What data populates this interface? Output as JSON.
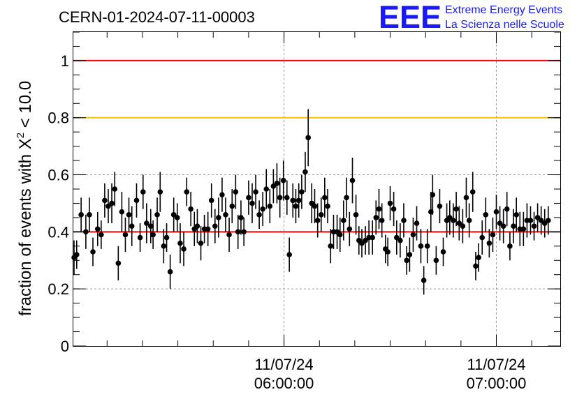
{
  "header": {
    "run_id": "CERN-01-2024-07-11-00003",
    "logo": {
      "mark": "EEE",
      "line1": "Extreme Energy Events",
      "line2": "La Scienza nelle Scuole",
      "color": "#1a1aff"
    }
  },
  "chart_data": {
    "type": "scatter",
    "title": "CERN-01-2024-07-11-00003",
    "ylabel_prefix": "fraction of events with ",
    "ylabel_symbol": "X",
    "ylabel_exponent": "2",
    "ylabel_suffix": " < 10.0",
    "ylim": [
      0,
      1.1
    ],
    "y_ticks": [
      "0",
      "0.2",
      "0.4",
      "0.6",
      "0.8",
      "1"
    ],
    "x_range": [
      "2024-07-11T05:00:40",
      "2024-07-11T07:17:40"
    ],
    "x_ticks": [
      {
        "t": "2024-07-11T06:00:00",
        "date": "11/07/24",
        "time": "06:00:00"
      },
      {
        "t": "2024-07-11T07:00:00",
        "date": "11/07/24",
        "time": "07:00:00"
      }
    ],
    "grid": true,
    "reference_lines": [
      {
        "y": 1.0,
        "color": "#ff0000"
      },
      {
        "y": 0.8,
        "color": "#ffc000"
      },
      {
        "y": 0.4,
        "color": "#ff0000"
      }
    ],
    "series": [
      {
        "marker_color": "#000000",
        "points": [
          [
            "2024-07-11T05:00:40",
            0.31,
            0.06
          ],
          [
            "2024-07-11T05:01:25",
            0.32,
            0.05
          ],
          [
            "2024-07-11T05:02:40",
            0.46,
            0.06
          ],
          [
            "2024-07-11T05:04:00",
            0.4,
            0.06
          ],
          [
            "2024-07-11T05:05:00",
            0.46,
            0.06
          ],
          [
            "2024-07-11T05:06:00",
            0.33,
            0.05
          ],
          [
            "2024-07-11T05:07:20",
            0.41,
            0.06
          ],
          [
            "2024-07-11T05:08:20",
            0.39,
            0.05
          ],
          [
            "2024-07-11T05:09:20",
            0.51,
            0.06
          ],
          [
            "2024-07-11T05:10:20",
            0.49,
            0.06
          ],
          [
            "2024-07-11T05:11:20",
            0.5,
            0.07
          ],
          [
            "2024-07-11T05:12:10",
            0.55,
            0.06
          ],
          [
            "2024-07-11T05:13:10",
            0.29,
            0.06
          ],
          [
            "2024-07-11T05:14:10",
            0.47,
            0.07
          ],
          [
            "2024-07-11T05:15:10",
            0.39,
            0.06
          ],
          [
            "2024-07-11T05:16:10",
            0.46,
            0.06
          ],
          [
            "2024-07-11T05:17:00",
            0.42,
            0.07
          ],
          [
            "2024-07-11T05:18:20",
            0.51,
            0.06
          ],
          [
            "2024-07-11T05:19:20",
            0.38,
            0.05
          ],
          [
            "2024-07-11T05:20:10",
            0.54,
            0.06
          ],
          [
            "2024-07-11T05:21:10",
            0.43,
            0.07
          ],
          [
            "2024-07-11T05:22:20",
            0.42,
            0.06
          ],
          [
            "2024-07-11T05:23:00",
            0.39,
            0.05
          ],
          [
            "2024-07-11T05:24:10",
            0.46,
            0.06
          ],
          [
            "2024-07-11T05:25:00",
            0.54,
            0.07
          ],
          [
            "2024-07-11T05:26:00",
            0.35,
            0.06
          ],
          [
            "2024-07-11T05:26:50",
            0.38,
            0.05
          ],
          [
            "2024-07-11T05:27:50",
            0.26,
            0.06
          ],
          [
            "2024-07-11T05:28:50",
            0.46,
            0.06
          ],
          [
            "2024-07-11T05:29:50",
            0.45,
            0.05
          ],
          [
            "2024-07-11T05:30:40",
            0.36,
            0.07
          ],
          [
            "2024-07-11T05:31:40",
            0.34,
            0.06
          ],
          [
            "2024-07-11T05:32:30",
            0.54,
            0.05
          ],
          [
            "2024-07-11T05:33:40",
            0.48,
            0.06
          ],
          [
            "2024-07-11T05:34:40",
            0.41,
            0.06
          ],
          [
            "2024-07-11T05:35:30",
            0.42,
            0.06
          ],
          [
            "2024-07-11T05:36:30",
            0.36,
            0.06
          ],
          [
            "2024-07-11T05:37:30",
            0.41,
            0.05
          ],
          [
            "2024-07-11T05:38:30",
            0.41,
            0.06
          ],
          [
            "2024-07-11T05:39:30",
            0.51,
            0.06
          ],
          [
            "2024-07-11T05:40:30",
            0.42,
            0.06
          ],
          [
            "2024-07-11T05:41:30",
            0.45,
            0.07
          ],
          [
            "2024-07-11T05:42:30",
            0.53,
            0.06
          ],
          [
            "2024-07-11T05:43:30",
            0.46,
            0.06
          ],
          [
            "2024-07-11T05:44:30",
            0.39,
            0.06
          ],
          [
            "2024-07-11T05:45:20",
            0.49,
            0.06
          ],
          [
            "2024-07-11T05:46:20",
            0.54,
            0.06
          ],
          [
            "2024-07-11T05:47:00",
            0.4,
            0.06
          ],
          [
            "2024-07-11T05:47:50",
            0.45,
            0.06
          ],
          [
            "2024-07-11T05:48:40",
            0.4,
            0.05
          ],
          [
            "2024-07-11T05:50:00",
            0.52,
            0.06
          ],
          [
            "2024-07-11T05:51:00",
            0.5,
            0.07
          ],
          [
            "2024-07-11T05:52:00",
            0.54,
            0.06
          ],
          [
            "2024-07-11T05:53:00",
            0.46,
            0.05
          ],
          [
            "2024-07-11T05:54:00",
            0.48,
            0.06
          ],
          [
            "2024-07-11T05:55:00",
            0.55,
            0.07
          ],
          [
            "2024-07-11T05:56:00",
            0.49,
            0.06
          ],
          [
            "2024-07-11T05:57:00",
            0.56,
            0.06
          ],
          [
            "2024-07-11T05:58:00",
            0.57,
            0.07
          ],
          [
            "2024-07-11T05:58:50",
            0.52,
            0.07
          ],
          [
            "2024-07-11T05:59:50",
            0.58,
            0.07
          ],
          [
            "2024-07-11T06:00:50",
            0.52,
            0.06
          ],
          [
            "2024-07-11T06:01:30",
            0.32,
            0.06
          ],
          [
            "2024-07-11T06:02:30",
            0.51,
            0.06
          ],
          [
            "2024-07-11T06:03:20",
            0.49,
            0.06
          ],
          [
            "2024-07-11T06:04:10",
            0.51,
            0.06
          ],
          [
            "2024-07-11T06:05:00",
            0.54,
            0.06
          ],
          [
            "2024-07-11T06:06:00",
            0.61,
            0.07
          ],
          [
            "2024-07-11T06:06:50",
            0.73,
            0.1
          ],
          [
            "2024-07-11T06:07:50",
            0.5,
            0.07
          ],
          [
            "2024-07-11T06:08:40",
            0.49,
            0.06
          ],
          [
            "2024-07-11T06:09:30",
            0.44,
            0.06
          ],
          [
            "2024-07-11T06:10:30",
            0.46,
            0.06
          ],
          [
            "2024-07-11T06:11:30",
            0.52,
            0.07
          ],
          [
            "2024-07-11T06:12:20",
            0.49,
            0.06
          ],
          [
            "2024-07-11T06:13:10",
            0.35,
            0.06
          ],
          [
            "2024-07-11T06:14:00",
            0.4,
            0.06
          ],
          [
            "2024-07-11T06:15:00",
            0.4,
            0.06
          ],
          [
            "2024-07-11T06:15:50",
            0.39,
            0.06
          ],
          [
            "2024-07-11T06:16:50",
            0.44,
            0.07
          ],
          [
            "2024-07-11T06:17:40",
            0.52,
            0.07
          ],
          [
            "2024-07-11T06:18:30",
            0.41,
            0.06
          ],
          [
            "2024-07-11T06:19:20",
            0.58,
            0.08
          ],
          [
            "2024-07-11T06:20:20",
            0.46,
            0.07
          ],
          [
            "2024-07-11T06:21:10",
            0.37,
            0.05
          ],
          [
            "2024-07-11T06:22:00",
            0.36,
            0.05
          ],
          [
            "2024-07-11T06:23:00",
            0.37,
            0.05
          ],
          [
            "2024-07-11T06:24:00",
            0.38,
            0.06
          ],
          [
            "2024-07-11T06:25:00",
            0.38,
            0.06
          ],
          [
            "2024-07-11T06:26:00",
            0.45,
            0.06
          ],
          [
            "2024-07-11T06:26:50",
            0.48,
            0.07
          ],
          [
            "2024-07-11T06:27:40",
            0.44,
            0.06
          ],
          [
            "2024-07-11T06:28:40",
            0.34,
            0.05
          ],
          [
            "2024-07-11T06:29:20",
            0.33,
            0.05
          ],
          [
            "2024-07-11T06:30:00",
            0.5,
            0.06
          ],
          [
            "2024-07-11T06:31:00",
            0.48,
            0.06
          ],
          [
            "2024-07-11T06:31:50",
            0.38,
            0.06
          ],
          [
            "2024-07-11T06:32:50",
            0.37,
            0.06
          ],
          [
            "2024-07-11T06:33:50",
            0.44,
            0.06
          ],
          [
            "2024-07-11T06:34:40",
            0.3,
            0.05
          ],
          [
            "2024-07-11T06:35:30",
            0.32,
            0.06
          ],
          [
            "2024-07-11T06:36:30",
            0.39,
            0.06
          ],
          [
            "2024-07-11T06:37:30",
            0.43,
            0.06
          ],
          [
            "2024-07-11T06:38:40",
            0.35,
            0.06
          ],
          [
            "2024-07-11T06:39:30",
            0.23,
            0.05
          ],
          [
            "2024-07-11T06:40:30",
            0.35,
            0.06
          ],
          [
            "2024-07-11T06:41:30",
            0.47,
            0.07
          ],
          [
            "2024-07-11T06:42:00",
            0.53,
            0.07
          ],
          [
            "2024-07-11T06:43:00",
            0.3,
            0.05
          ],
          [
            "2024-07-11T06:44:00",
            0.49,
            0.06
          ],
          [
            "2024-07-11T06:45:00",
            0.33,
            0.05
          ],
          [
            "2024-07-11T06:46:00",
            0.44,
            0.06
          ],
          [
            "2024-07-11T06:46:50",
            0.45,
            0.06
          ],
          [
            "2024-07-11T06:47:50",
            0.44,
            0.06
          ],
          [
            "2024-07-11T06:48:40",
            0.48,
            0.06
          ],
          [
            "2024-07-11T06:49:30",
            0.43,
            0.06
          ],
          [
            "2024-07-11T06:50:30",
            0.42,
            0.06
          ],
          [
            "2024-07-11T06:51:30",
            0.52,
            0.07
          ],
          [
            "2024-07-11T06:52:20",
            0.44,
            0.06
          ],
          [
            "2024-07-11T06:53:20",
            0.54,
            0.07
          ],
          [
            "2024-07-11T06:54:10",
            0.28,
            0.05
          ],
          [
            "2024-07-11T06:55:00",
            0.31,
            0.05
          ],
          [
            "2024-07-11T06:56:00",
            0.38,
            0.06
          ],
          [
            "2024-07-11T06:57:00",
            0.46,
            0.06
          ],
          [
            "2024-07-11T06:58:00",
            0.36,
            0.05
          ],
          [
            "2024-07-11T06:59:00",
            0.39,
            0.06
          ],
          [
            "2024-07-11T07:00:00",
            0.47,
            0.06
          ],
          [
            "2024-07-11T07:01:00",
            0.43,
            0.06
          ],
          [
            "2024-07-11T07:02:00",
            0.42,
            0.06
          ],
          [
            "2024-07-11T07:03:00",
            0.48,
            0.06
          ],
          [
            "2024-07-11T07:03:50",
            0.35,
            0.05
          ],
          [
            "2024-07-11T07:04:50",
            0.42,
            0.06
          ],
          [
            "2024-07-11T07:05:40",
            0.46,
            0.06
          ],
          [
            "2024-07-11T07:06:40",
            0.41,
            0.06
          ],
          [
            "2024-07-11T07:07:40",
            0.41,
            0.06
          ],
          [
            "2024-07-11T07:08:40",
            0.44,
            0.06
          ],
          [
            "2024-07-11T07:09:40",
            0.44,
            0.05
          ],
          [
            "2024-07-11T07:10:40",
            0.42,
            0.05
          ],
          [
            "2024-07-11T07:11:40",
            0.45,
            0.05
          ],
          [
            "2024-07-11T07:12:40",
            0.44,
            0.05
          ],
          [
            "2024-07-11T07:13:40",
            0.43,
            0.05
          ],
          [
            "2024-07-11T07:14:40",
            0.44,
            0.05
          ]
        ]
      }
    ]
  }
}
